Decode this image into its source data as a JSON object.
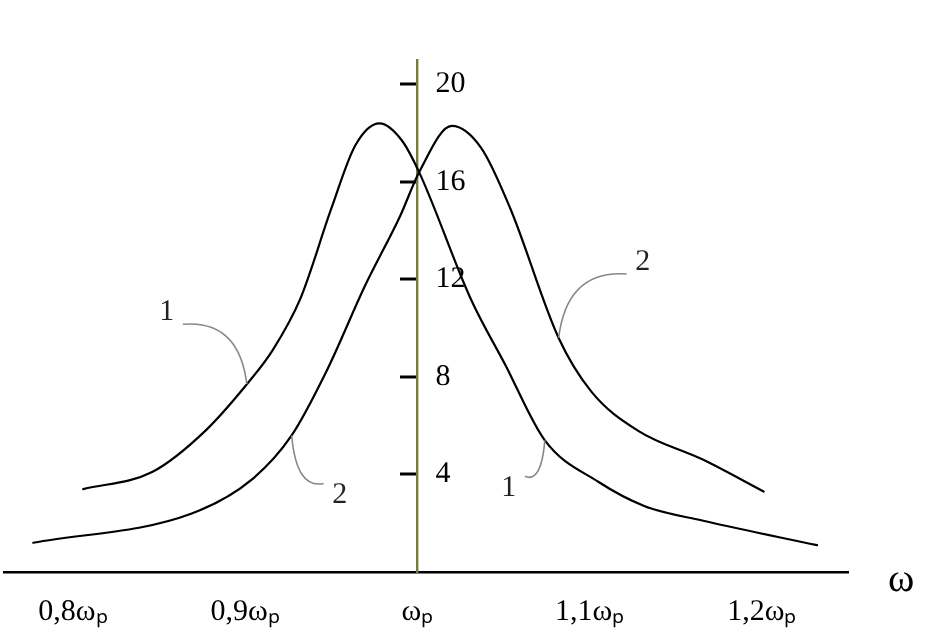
{
  "chart_data": {
    "type": "line",
    "xlabel": "ω",
    "xlim": [
      0.76,
      1.25
    ],
    "ylim": [
      0,
      21
    ],
    "xticks": [
      {
        "value": 0.8,
        "label": "0,8ωₚ"
      },
      {
        "value": 0.9,
        "label": "0,9ωₚ"
      },
      {
        "value": 1.0,
        "label": "ωₚ"
      },
      {
        "value": 1.1,
        "label": "1,1ωₚ"
      },
      {
        "value": 1.2,
        "label": "1,2ωₚ"
      }
    ],
    "yticks": [
      4,
      8,
      12,
      16,
      20
    ],
    "grid": false,
    "legend": false,
    "marker": "none",
    "line_style": "solid",
    "series": [
      {
        "name": "1",
        "color": "#000000",
        "x": [
          0.806,
          0.846,
          0.877,
          0.901,
          0.916,
          0.932,
          0.95,
          0.964,
          0.978,
          0.991,
          1.001,
          1.031,
          1.051,
          1.074,
          1.105,
          1.132,
          1.166,
          1.232
        ],
        "values": [
          3.4,
          4.1,
          5.8,
          7.7,
          9.1,
          11.2,
          14.9,
          17.5,
          18.4,
          17.7,
          16.4,
          11.2,
          8.5,
          5.4,
          3.7,
          2.7,
          2.1,
          1.1
        ]
      },
      {
        "name": "2",
        "color": "#000000",
        "x": [
          0.777,
          0.869,
          0.904,
          0.927,
          0.947,
          0.97,
          0.99,
          1.001,
          1.02,
          1.037,
          1.054,
          1.082,
          1.101,
          1.128,
          1.166,
          1.201
        ],
        "values": [
          1.2,
          2.4,
          3.8,
          5.6,
          8.2,
          11.8,
          14.6,
          16.4,
          18.3,
          17.4,
          14.9,
          9.6,
          7.4,
          5.8,
          4.6,
          3.3
        ]
      }
    ]
  }
}
